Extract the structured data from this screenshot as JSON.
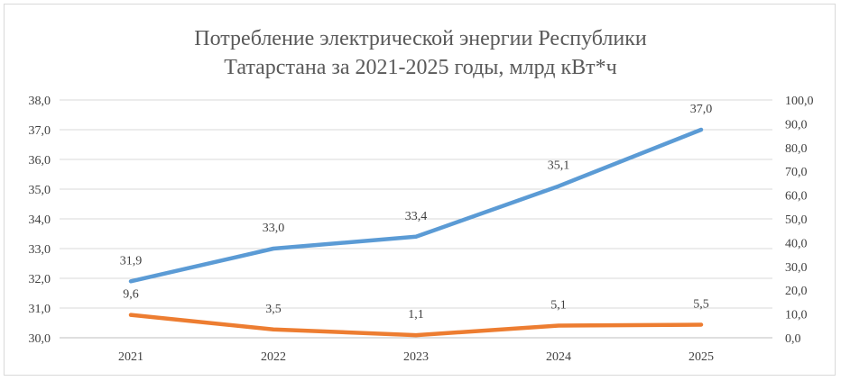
{
  "chart_data": {
    "type": "line",
    "title_line1": "Потребление электрической энергии Республики",
    "title_line2": "Татарстана за 2021-2025 годы, млрд кВт*ч",
    "categories": [
      "2021",
      "2022",
      "2023",
      "2024",
      "2025"
    ],
    "y_left": {
      "min": 30,
      "max": 38,
      "step": 1,
      "ticks": [
        "30,0",
        "31,0",
        "32,0",
        "33,0",
        "34,0",
        "35,0",
        "36,0",
        "37,0",
        "38,0"
      ]
    },
    "y_right": {
      "min": 0,
      "max": 100,
      "step": 10,
      "ticks": [
        "0,0",
        "10,0",
        "20,0",
        "30,0",
        "40,0",
        "50,0",
        "60,0",
        "70,0",
        "80,0",
        "90,0",
        "100,0"
      ]
    },
    "series": [
      {
        "axis": "left",
        "color": "#5b9bd5",
        "values": [
          31.9,
          33.0,
          33.4,
          35.1,
          37.0
        ],
        "labels": [
          "31,9",
          "33,0",
          "33,4",
          "35,1",
          "37,0"
        ]
      },
      {
        "axis": "right",
        "color": "#ed7d31",
        "values": [
          9.6,
          3.5,
          1.1,
          5.1,
          5.5
        ],
        "labels": [
          "9,6",
          "3,5",
          "1,1",
          "5,1",
          "5,5"
        ]
      }
    ],
    "grid": true,
    "legend": "none"
  }
}
